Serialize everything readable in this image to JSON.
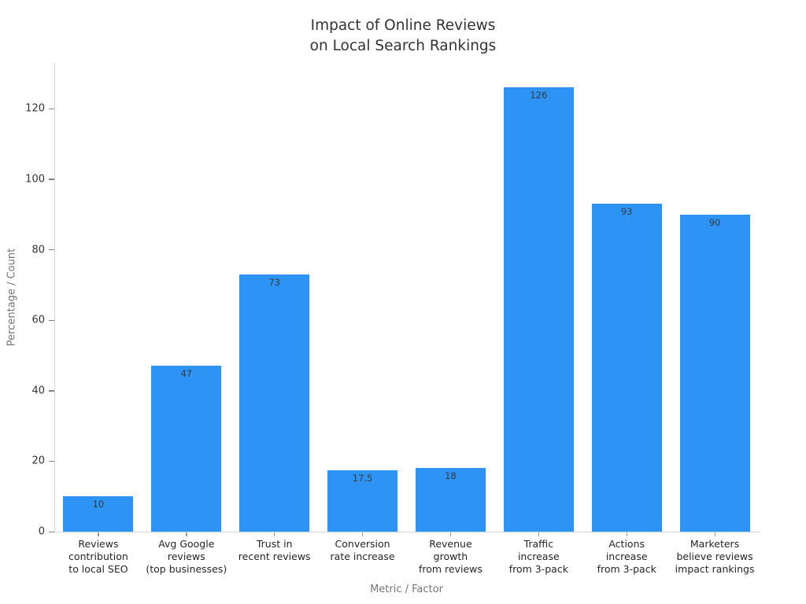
{
  "title": {
    "line1": "Impact of Online Reviews",
    "line2": "on Local Search Rankings"
  },
  "chart_data": {
    "type": "bar",
    "title": "Impact of Online Reviews\non Local Search Rankings",
    "xlabel": "Metric / Factor",
    "ylabel": "Percentage / Count",
    "ylim": [
      0,
      133
    ],
    "yticks": [
      0,
      20,
      40,
      60,
      80,
      100,
      120
    ],
    "grid": false,
    "legend": null,
    "bar_color": "#2d94f5",
    "categories": [
      [
        "Reviews",
        "contribution",
        "to local SEO"
      ],
      [
        "Avg Google",
        "reviews",
        "(top businesses)"
      ],
      [
        "Trust in",
        "recent reviews"
      ],
      [
        "Conversion",
        "rate increase"
      ],
      [
        "Revenue",
        "growth",
        "from reviews"
      ],
      [
        "Traffic",
        "increase",
        "from 3-pack"
      ],
      [
        "Actions",
        "increase",
        "from 3-pack"
      ],
      [
        "Marketers",
        "believe reviews",
        "impact rankings"
      ]
    ],
    "values": [
      10,
      47,
      73,
      17.5,
      18,
      126,
      93,
      90
    ],
    "value_labels": [
      "10",
      "47",
      "73",
      "17.5",
      "18",
      "126",
      "93",
      "90"
    ]
  }
}
